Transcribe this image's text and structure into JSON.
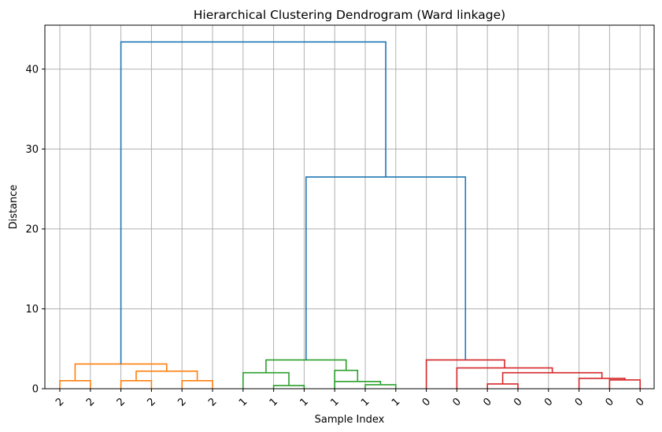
{
  "chart_data": {
    "type": "dendrogram",
    "title": "Hierarchical Clustering Dendrogram (Ward linkage)",
    "xlabel": "Sample Index",
    "ylabel": "Distance",
    "ylim": [
      0,
      45.5
    ],
    "yticks": [
      0,
      10,
      20,
      30,
      40
    ],
    "grid": true,
    "leaf_labels": [
      "2",
      "2",
      "2",
      "2",
      "2",
      "2",
      "1",
      "1",
      "1",
      "1",
      "1",
      "1",
      "0",
      "0",
      "0",
      "0",
      "0",
      "0",
      "0",
      "0"
    ],
    "colors": {
      "cluster_2": "#ff7f0e",
      "cluster_1": "#2ca02c",
      "cluster_0": "#d62728",
      "root": "#1f77b4"
    },
    "merges": [
      {
        "left": "L0",
        "right": "L1",
        "height": 1.0,
        "color": "#ff7f0e"
      },
      {
        "left": "L2",
        "right": "L3",
        "height": 1.0,
        "color": "#ff7f0e"
      },
      {
        "left": "L4",
        "right": "L5",
        "height": 1.0,
        "color": "#ff7f0e"
      },
      {
        "left": "N1",
        "right": "N2",
        "height": 2.2,
        "color": "#ff7f0e"
      },
      {
        "left": "N0",
        "right": "N3",
        "height": 3.1,
        "color": "#ff7f0e"
      },
      {
        "left": "L7",
        "right": "L8",
        "height": 0.4,
        "color": "#2ca02c"
      },
      {
        "left": "L6",
        "right": "N5",
        "height": 2.0,
        "color": "#2ca02c"
      },
      {
        "left": "L10",
        "right": "L11",
        "height": 0.5,
        "color": "#2ca02c"
      },
      {
        "left": "L9",
        "right": "N7",
        "height": 0.9,
        "color": "#2ca02c"
      },
      {
        "left": "L9b",
        "right": "N8",
        "height": 2.3,
        "color": "#2ca02c"
      },
      {
        "left": "N6",
        "right": "N9",
        "height": 3.6,
        "color": "#2ca02c"
      },
      {
        "left": "L14",
        "right": "L15",
        "height": 0.6,
        "color": "#d62728"
      },
      {
        "left": "L18",
        "right": "L19",
        "height": 1.1,
        "color": "#d62728"
      },
      {
        "left": "L17",
        "right": "N12",
        "height": 1.3,
        "color": "#d62728"
      },
      {
        "left": "N11",
        "right": "N13",
        "height": 2.0,
        "color": "#d62728"
      },
      {
        "left": "L13",
        "right": "N14",
        "height": 2.6,
        "color": "#d62728"
      },
      {
        "left": "L12",
        "right": "N15",
        "height": 3.6,
        "color": "#d62728"
      },
      {
        "left": "N10",
        "right": "N16",
        "height": 26.5,
        "color": "#1f77b4"
      },
      {
        "left": "N4",
        "right": "N17",
        "height": 43.4,
        "color": "#1f77b4"
      }
    ]
  }
}
